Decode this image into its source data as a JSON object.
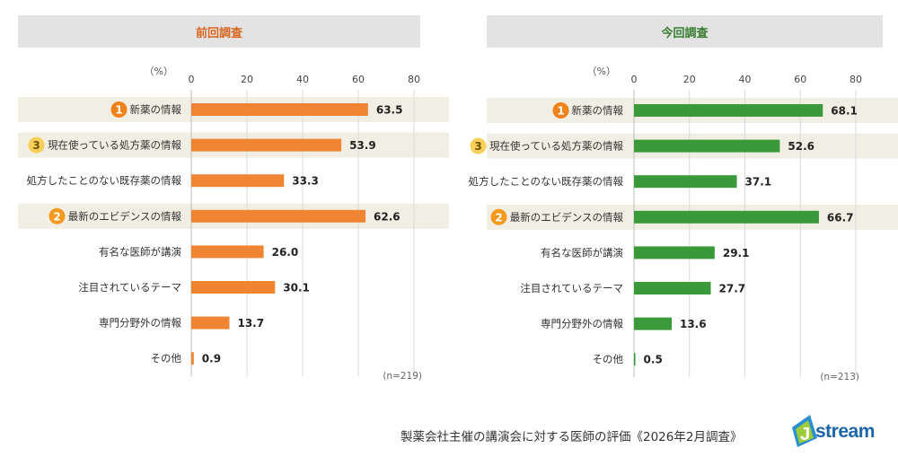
{
  "chart_data": [
    {
      "type": "bar",
      "orientation": "horizontal",
      "title": "前回調査",
      "unit_label": "（%）",
      "xlim": [
        0,
        80
      ],
      "ticks": [
        0,
        20,
        40,
        60,
        80
      ],
      "grid": true,
      "categories": [
        "新薬の情報",
        "現在使っている処方薬の情報",
        "処方したことのない既存薬の情報",
        "最新のエビデンスの情報",
        "有名な医師が講演",
        "注目されているテーマ",
        "専門分野外の情報",
        "その他"
      ],
      "values": [
        63.5,
        53.9,
        33.3,
        62.6,
        26.0,
        30.1,
        13.7,
        0.9
      ],
      "value_labels": [
        "63.5",
        "53.9",
        "33.3",
        "62.6",
        "26.0",
        "30.1",
        "13.7",
        "0.9"
      ],
      "ranks": [
        "1",
        "3",
        "",
        "2",
        "",
        "",
        "",
        ""
      ],
      "n_label": "(n=219)",
      "bar_color": "#ef8533",
      "header_color": "#d9651f"
    },
    {
      "type": "bar",
      "orientation": "horizontal",
      "title": "今回調査",
      "unit_label": "（%）",
      "xlim": [
        0,
        80
      ],
      "ticks": [
        0,
        20,
        40,
        60,
        80
      ],
      "grid": true,
      "categories": [
        "新薬の情報",
        "現在使っている処方薬の情報",
        "処方したことのない既存薬の情報",
        "最新のエビデンスの情報",
        "有名な医師が講演",
        "注目されているテーマ",
        "専門分野外の情報",
        "その他"
      ],
      "values": [
        68.1,
        52.6,
        37.1,
        66.7,
        29.1,
        27.7,
        13.6,
        0.5
      ],
      "value_labels": [
        "68.1",
        "52.6",
        "37.1",
        "66.7",
        "29.1",
        "27.7",
        "13.6",
        "0.5"
      ],
      "ranks": [
        "1",
        "3",
        "",
        "2",
        "",
        "",
        "",
        ""
      ],
      "n_label": "(n=213)",
      "bar_color": "#3a9a3a",
      "header_color": "#3a7d32"
    }
  ],
  "rank_colors": {
    "1": "#f0821e",
    "2": "#f39a1f",
    "3": "#f7cf58"
  },
  "highlight_color": "#f1efe3",
  "footer": {
    "title": "製薬会社主催の講演会に対する医師の評価《2026年2月調査》",
    "logo_text": "stream",
    "logo_initial": "J"
  }
}
